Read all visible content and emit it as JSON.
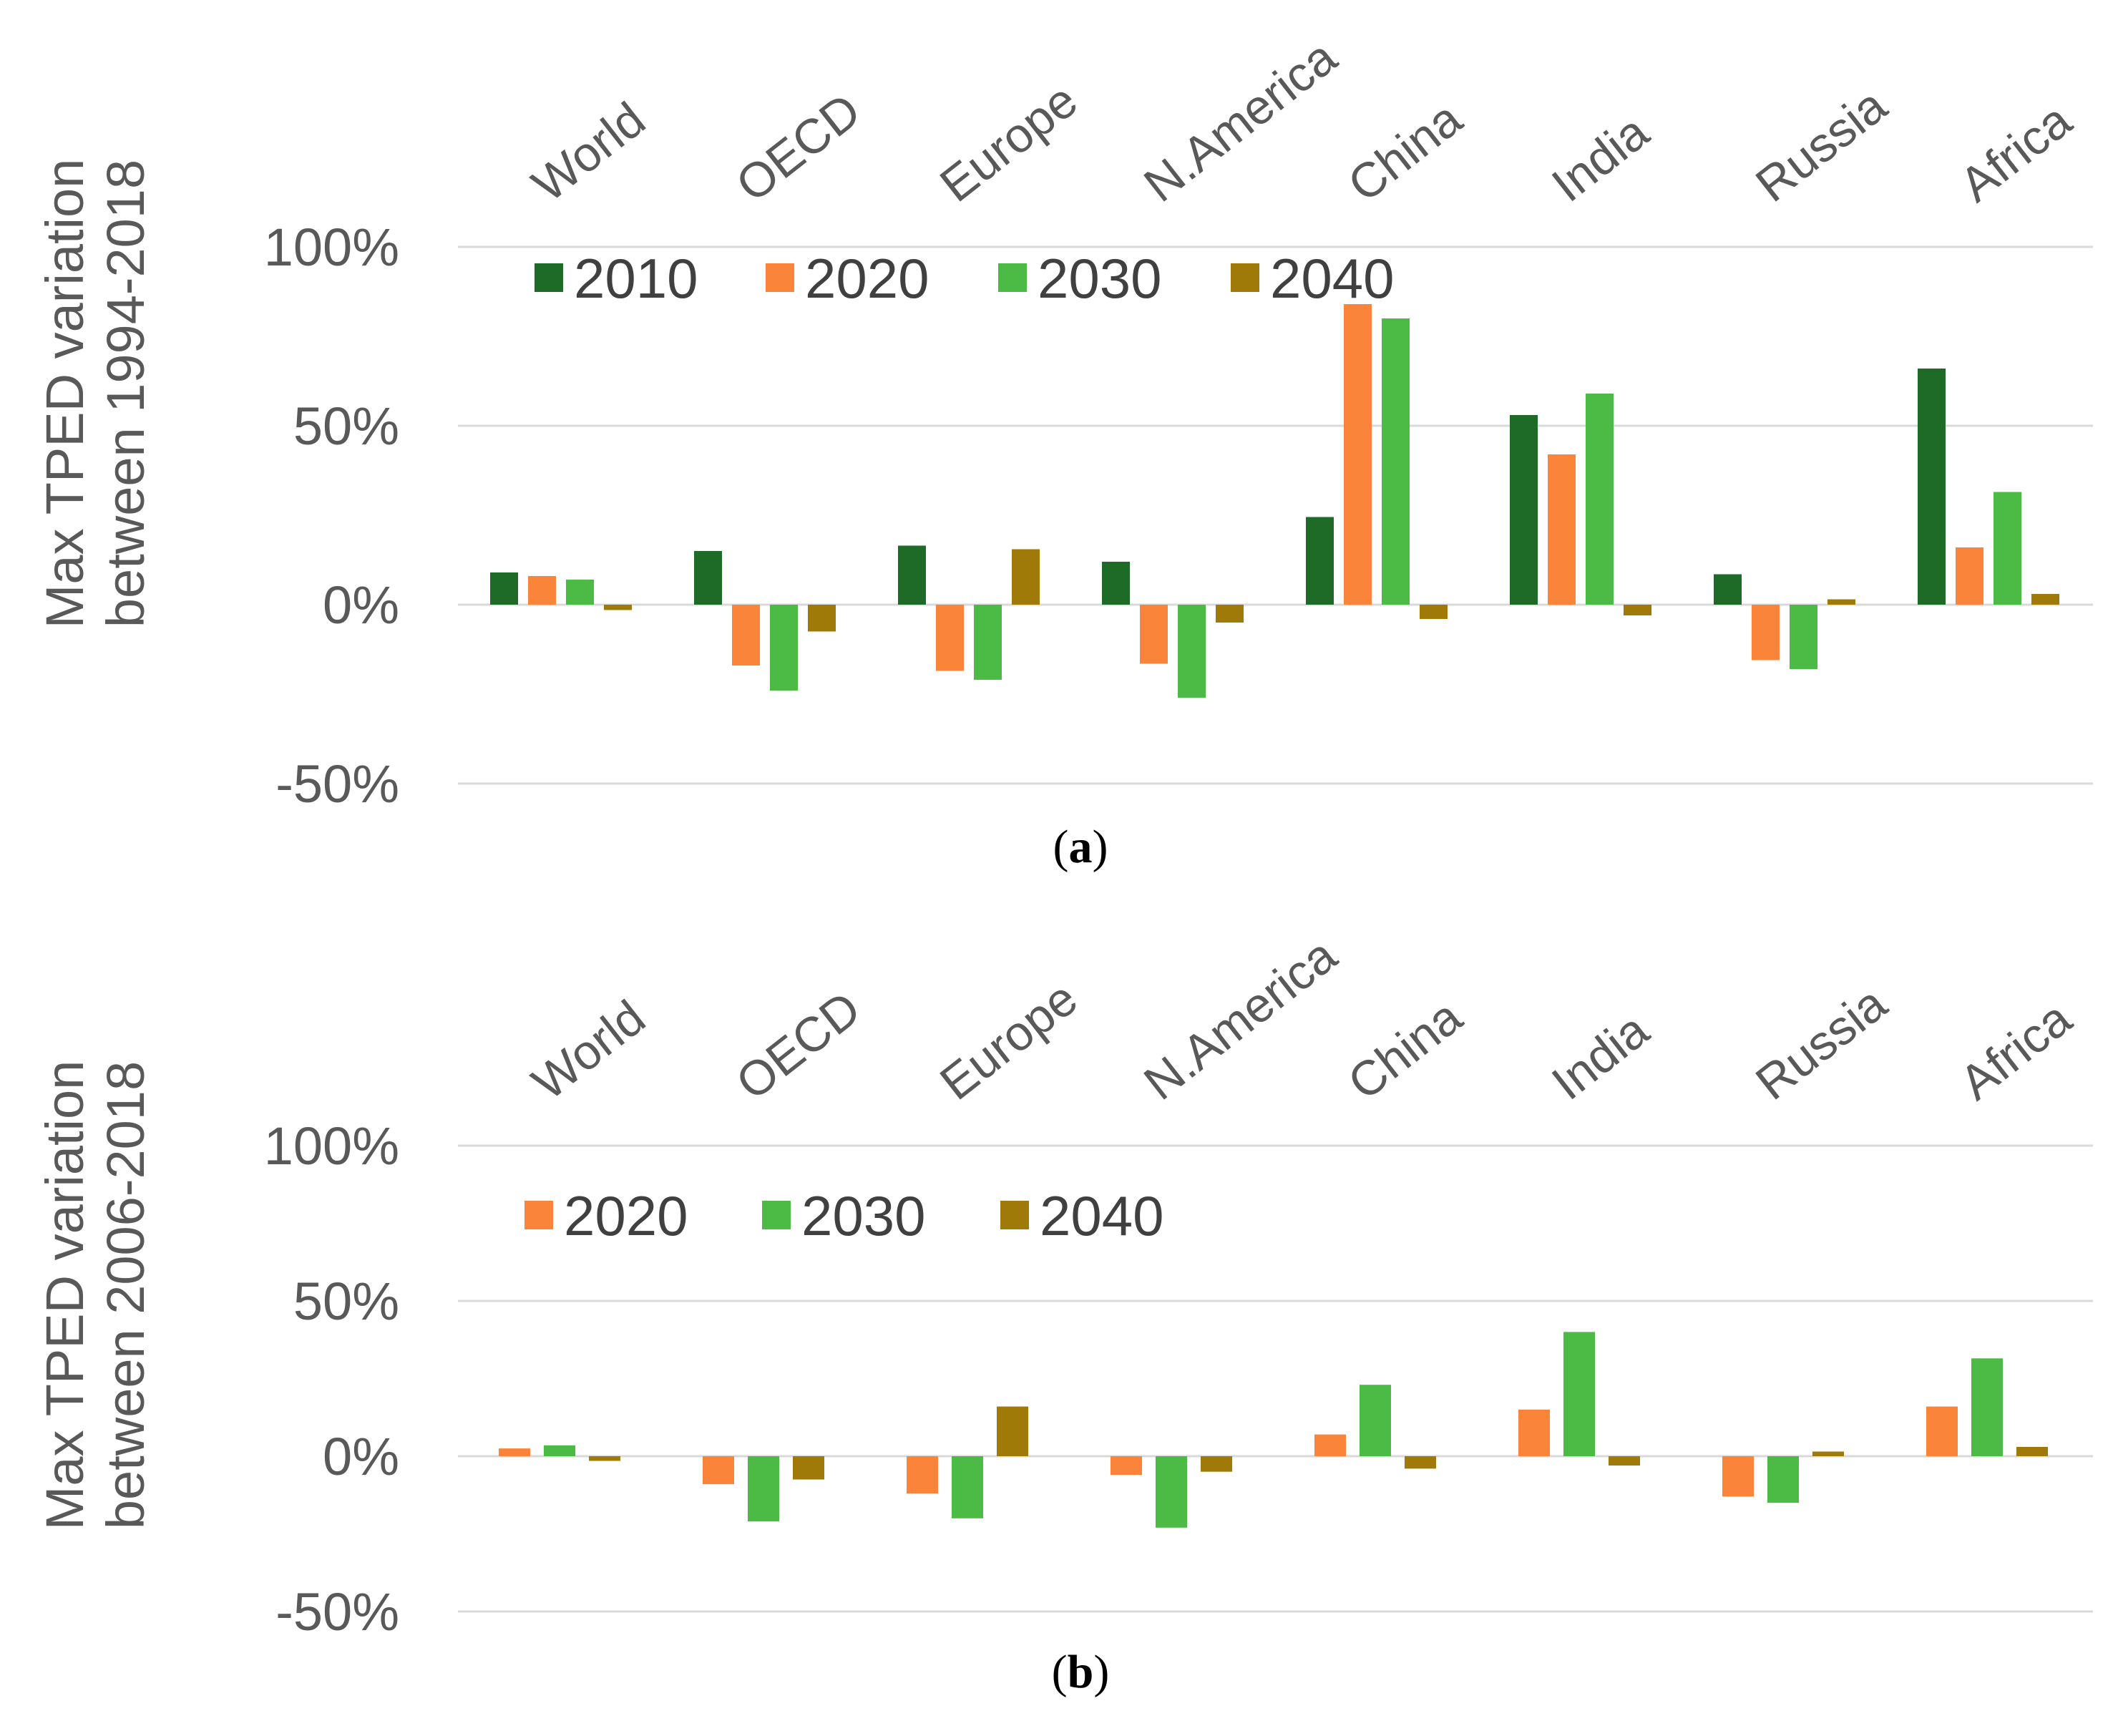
{
  "colors": {
    "2010": "#1e6b28",
    "2020": "#f9843a",
    "2030": "#4cbb45",
    "2040": "#a07a08"
  },
  "chart_data": [
    {
      "type": "bar",
      "id": "a",
      "caption_label": "a",
      "ylabel_line1": "Max TPED variation",
      "ylabel_line2": "between 1994-2018",
      "ylim": [
        -50,
        100
      ],
      "yticks": [
        -50,
        0,
        50,
        100
      ],
      "ytick_labels": [
        "-50%",
        "0%",
        "50%",
        "100%"
      ],
      "categories": [
        "World",
        "OECD",
        "Europe",
        "N.America",
        "China",
        "India",
        "Russia",
        "Africa"
      ],
      "series": [
        {
          "name": "2010",
          "values": [
            9,
            15,
            16.5,
            12,
            24.5,
            53,
            8.5,
            66
          ]
        },
        {
          "name": "2020",
          "values": [
            8,
            -17,
            -18.5,
            -16.5,
            84,
            42,
            -15.5,
            16
          ]
        },
        {
          "name": "2030",
          "values": [
            7,
            -24,
            -21,
            -26,
            80,
            59,
            -18,
            31.5
          ]
        },
        {
          "name": "2040",
          "values": [
            -1.5,
            -7.5,
            15.5,
            -5,
            -4,
            -3,
            1.5,
            3
          ]
        }
      ],
      "legend": "top-left"
    },
    {
      "type": "bar",
      "id": "b",
      "caption_label": "b",
      "ylabel_line1": "Max TPED variation",
      "ylabel_line2": "between 2006-2018",
      "ylim": [
        -50,
        100
      ],
      "yticks": [
        -50,
        0,
        50,
        100
      ],
      "ytick_labels": [
        "-50%",
        "0%",
        "50%",
        "100%"
      ],
      "categories": [
        "World",
        "OECD",
        "Europe",
        "N.America",
        "China",
        "India",
        "Russia",
        "Africa"
      ],
      "series": [
        {
          "name": "2020",
          "values": [
            2.5,
            -9,
            -12,
            -6,
            7,
            15,
            -13,
            16
          ]
        },
        {
          "name": "2030",
          "values": [
            3.5,
            -21,
            -20,
            -23,
            23,
            40,
            -15,
            31.5
          ]
        },
        {
          "name": "2040",
          "values": [
            -1.5,
            -7.5,
            16,
            -5,
            -4,
            -3,
            1.5,
            3
          ]
        }
      ],
      "legend": "top-left"
    }
  ]
}
